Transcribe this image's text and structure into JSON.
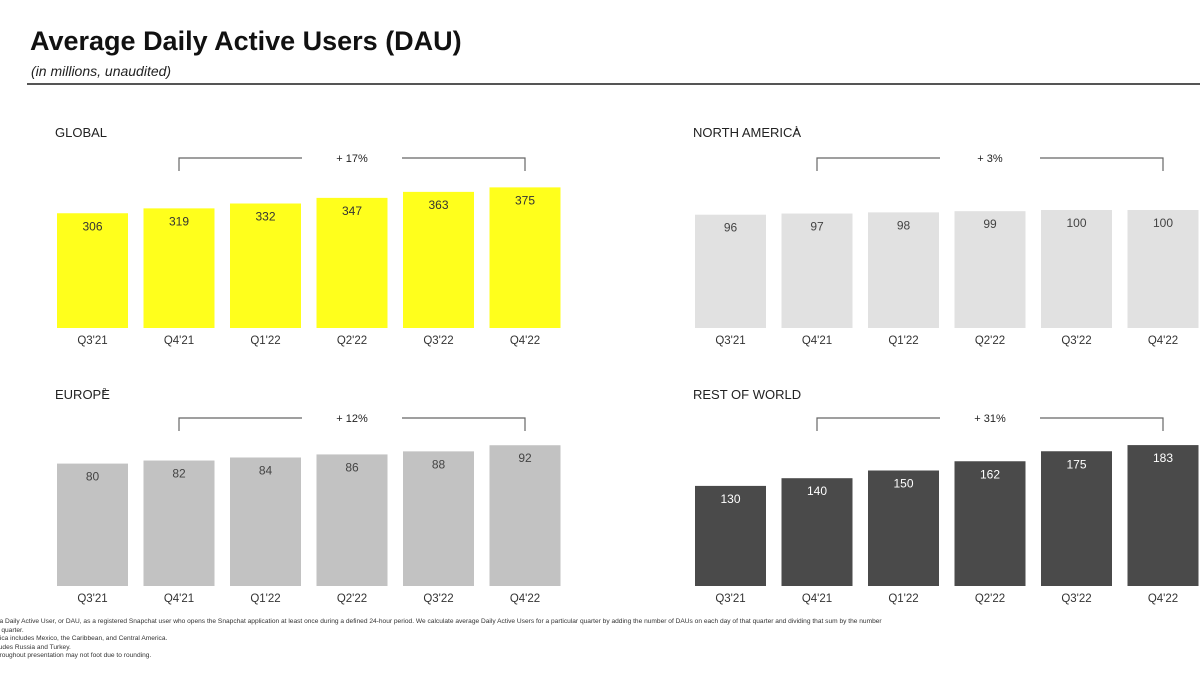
{
  "page": {
    "title": "Average Daily Active Users (DAU)",
    "subtitle": "(in millions, unaudited)"
  },
  "chart_data": [
    {
      "type": "bar",
      "title": "GLOBAL",
      "title_sup": "",
      "categories": [
        "Q3'21",
        "Q4'21",
        "Q1'22",
        "Q2'22",
        "Q3'22",
        "Q4'22"
      ],
      "values": [
        306,
        319,
        332,
        347,
        363,
        375
      ],
      "growth_label": "+ 17%",
      "bar_color": "#ffff1c",
      "label_color": "#333333"
    },
    {
      "type": "bar",
      "title": "NORTH AMERICA",
      "title_sup": "1",
      "categories": [
        "Q3'21",
        "Q4'21",
        "Q1'22",
        "Q2'22",
        "Q3'22",
        "Q4'22"
      ],
      "values": [
        96,
        97,
        98,
        99,
        100,
        100
      ],
      "growth_label": "+ 3%",
      "bar_color": "#e1e1e1",
      "label_color": "#444444"
    },
    {
      "type": "bar",
      "title": "EUROPE",
      "title_sup": "2",
      "categories": [
        "Q3'21",
        "Q4'21",
        "Q1'22",
        "Q2'22",
        "Q3'22",
        "Q4'22"
      ],
      "values": [
        80,
        82,
        84,
        86,
        88,
        92
      ],
      "growth_label": "+ 12%",
      "bar_color": "#c2c2c2",
      "label_color": "#444444"
    },
    {
      "type": "bar",
      "title": "REST OF WORLD",
      "title_sup": "",
      "categories": [
        "Q3'21",
        "Q4'21",
        "Q1'22",
        "Q2'22",
        "Q3'22",
        "Q4'22"
      ],
      "values": [
        130,
        140,
        150,
        162,
        175,
        183
      ],
      "growth_label": "+ 31%",
      "bar_color": "#4a4a4a",
      "label_color": "#ffffff"
    }
  ],
  "footnotes": [
    "e a Daily Active User, or DAU, as a registered Snapchat user who opens the Snapchat application at least once during a defined 24-hour period. We calculate average Daily Active Users for a particular quarter by adding the number of DAUs on each day of that quarter and dividing that sum by the number",
    "at quarter.",
    "erica includes Mexico, the Caribbean, and Central America.",
    "cludes Russia and Turkey.",
    "throughout presentation may not foot due to rounding."
  ]
}
